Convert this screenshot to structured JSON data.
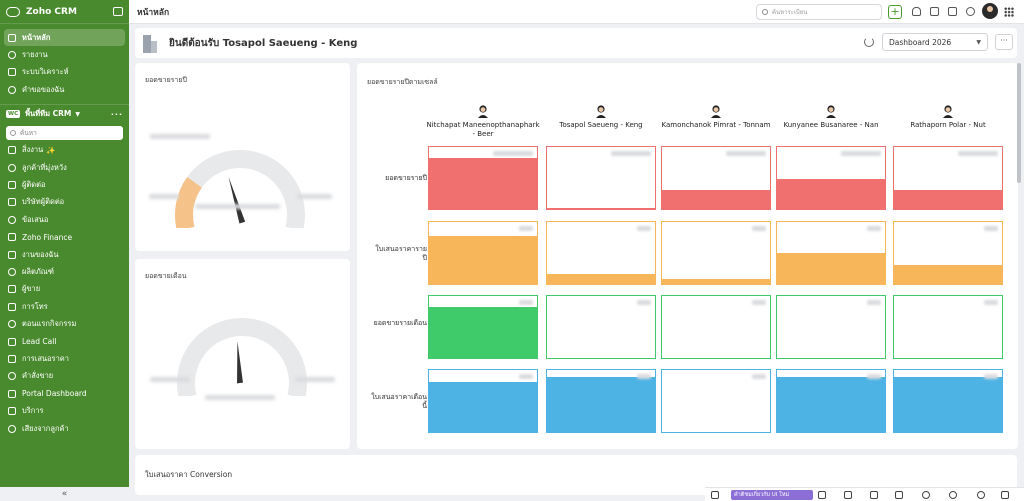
{
  "sidebar": {
    "brand": "Zoho CRM",
    "nav_top": [
      {
        "label": "หน้าหลัก",
        "icon": "home-icon",
        "active": true
      },
      {
        "label": "รายงาน",
        "icon": "report-icon"
      },
      {
        "label": "ระบบวิเคราะห์",
        "icon": "analytics-icon"
      },
      {
        "label": "คำขอของฉัน",
        "icon": "requests-icon"
      }
    ],
    "workspace": {
      "badge": "WC",
      "label": "พื้นที่ทีม CRM"
    },
    "search_placeholder": "ค้นหา",
    "modules": [
      {
        "label": "สิ่งงาน",
        "icon": "tasks-icon",
        "sparkle": "✨"
      },
      {
        "label": "ลูกค้าที่มุ่งหวัง",
        "icon": "leads-icon"
      },
      {
        "label": "ผู้ติดต่อ",
        "icon": "contacts-icon"
      },
      {
        "label": "บริษัทผู้ติดต่อ",
        "icon": "accounts-icon"
      },
      {
        "label": "ข้อเสนอ",
        "icon": "deals-icon"
      },
      {
        "label": "Zoho Finance",
        "icon": "finance-icon"
      },
      {
        "label": "งานของฉัน",
        "icon": "my-work-icon"
      },
      {
        "label": "ผลิตภัณฑ์",
        "icon": "products-icon"
      },
      {
        "label": "ผู้ขาย",
        "icon": "vendors-icon"
      },
      {
        "label": "การโทร",
        "icon": "phone-icon"
      },
      {
        "label": "ตอนแรกกิจกรรม",
        "icon": "activities-icon"
      },
      {
        "label": "Lead Call",
        "icon": "lead-call-icon"
      },
      {
        "label": "การเสนอราคา",
        "icon": "quotes-icon"
      },
      {
        "label": "คำสั่งขาย",
        "icon": "sales-orders-icon"
      },
      {
        "label": "Portal Dashboard",
        "icon": "portal-icon"
      },
      {
        "label": "บริการ",
        "icon": "services-icon"
      },
      {
        "label": "เสียงจากลูกค้า",
        "icon": "voice-icon"
      }
    ],
    "collapse_glyph": "«"
  },
  "topbar": {
    "title": "หน้าหลัก",
    "search_placeholder": "ค้นหาระเบียน",
    "add_glyph": "+"
  },
  "header": {
    "title": "ยินดีต้อนรับ Tosapol Saeueng - Keng",
    "dashboard_select": "Dashboard 2026",
    "more_glyph": "···"
  },
  "gauges": [
    {
      "title": "ยอดขายรายปี",
      "level": 0.25
    },
    {
      "title": "ยอดขายเดือน",
      "level": 0.04
    }
  ],
  "matrix": {
    "title": "ยอดขายรายปีตามเซลล์",
    "people": [
      "Nitchapat Maneenopthanaphark - Beer",
      "Tosapol Saeueng - Keng",
      "Kamonchanok Pimrat - Tonnam",
      "Kunyanee Busanaree - Nan",
      "Rathaporn Polar - Nut"
    ],
    "rows": [
      {
        "label": "ยอดขายรายปี",
        "color": "#f07070",
        "fills": [
          0.82,
          0.02,
          0.3,
          0.48,
          0.3
        ]
      },
      {
        "label": "ใบเสนอราคารายปี",
        "color": "#f7b65a",
        "fills": [
          0.78,
          0.16,
          0.08,
          0.5,
          0.3
        ]
      },
      {
        "label": "ยอดขายรายเดือน",
        "color": "#3fcb6a",
        "fills": [
          0.82,
          0.0,
          0.0,
          0.0,
          0.0
        ]
      },
      {
        "label": "ใบเสนอราคาเดือนนี้",
        "color": "#4db3e4",
        "fills": [
          0.8,
          0.88,
          0.0,
          0.88,
          0.88
        ]
      }
    ]
  },
  "conversion": {
    "title": "ใบเสนอราคา Conversion"
  },
  "bottombar": {
    "new_ui_label": "คำติชมเกี่ยวกับ UI ใหม่"
  }
}
